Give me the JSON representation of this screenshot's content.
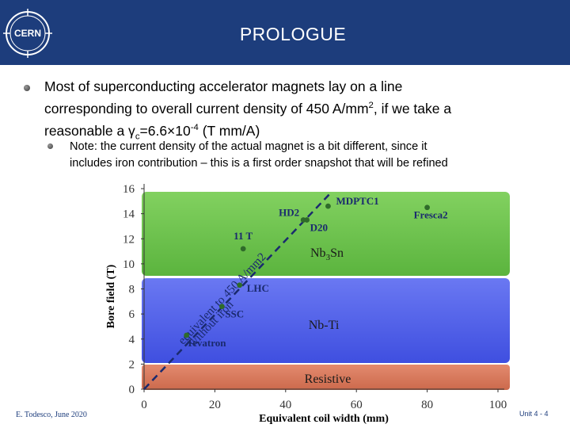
{
  "header": {
    "logo_text": "CERN",
    "title": "PROLOGUE",
    "color": "#1d3d7c"
  },
  "bullets": {
    "main": {
      "line1": "Most of superconducting accelerator magnets lay on a line",
      "line2_pre": "corresponding to  overall current density of 450 A/mm",
      "line2_sup": "2",
      "line2_post": ", if we take a",
      "line3_pre": "reasonable  a γ",
      "line3_sub": "c",
      "line3_mid": "=6.6×10",
      "line3_sup": "-4",
      "line3_post": " (T mm/A)"
    },
    "note": {
      "line1": "Note: the current density of the actual magnet is a bit different, since it",
      "line2": "includes iron contribution – this is a first order snapshot that will be refined"
    }
  },
  "chart_data": {
    "type": "scatter",
    "xlabel": "Equivalent coil width (mm)",
    "ylabel": "Bore field (T)",
    "xlim": [
      0,
      100
    ],
    "ylim": [
      0,
      16
    ],
    "x_ticks": [
      "0",
      "20",
      "40",
      "60",
      "80",
      "100"
    ],
    "y_ticks": [
      "0",
      "2",
      "4",
      "6",
      "8",
      "10",
      "12",
      "14",
      "16"
    ],
    "regions": [
      {
        "label": "Resistive",
        "y0": 0,
        "y1": 2,
        "color": "#d9775a"
      },
      {
        "label": "Nb-Ti",
        "y0": 2,
        "y1": 9,
        "color": "#4f5fe8"
      },
      {
        "label_main": "Nb",
        "label_sub": "3",
        "label_end": "Sn",
        "y0": 10,
        "y1": 16,
        "color": "#6ec44f"
      }
    ],
    "points": [
      {
        "name": "Tevatron",
        "x": 12,
        "y": 4.3
      },
      {
        "name": "SSC",
        "x": 22,
        "y": 6.6
      },
      {
        "name": "LHC",
        "x": 27,
        "y": 8.3
      },
      {
        "name": "11 T",
        "x": 28,
        "y": 11.2
      },
      {
        "name": "HD2",
        "x": 45,
        "y": 13.5
      },
      {
        "name": "D20",
        "x": 46,
        "y": 13.5
      },
      {
        "name": "MDPTC1",
        "x": 52,
        "y": 14.6
      },
      {
        "name": "Fresca2",
        "x": 80,
        "y": 14.5
      }
    ],
    "line": {
      "label_upper": "equivalent to 450 A/mm2",
      "label_lower": "without iron",
      "slope": 0.297
    },
    "colors": {
      "points": "#2f6b2a",
      "line": "#1a2a6e",
      "labels": "#1a2a6e",
      "axis": "#333333"
    }
  },
  "footer": {
    "left": "E. Todesco, June 2020",
    "right": "Unit 4 - 4"
  }
}
